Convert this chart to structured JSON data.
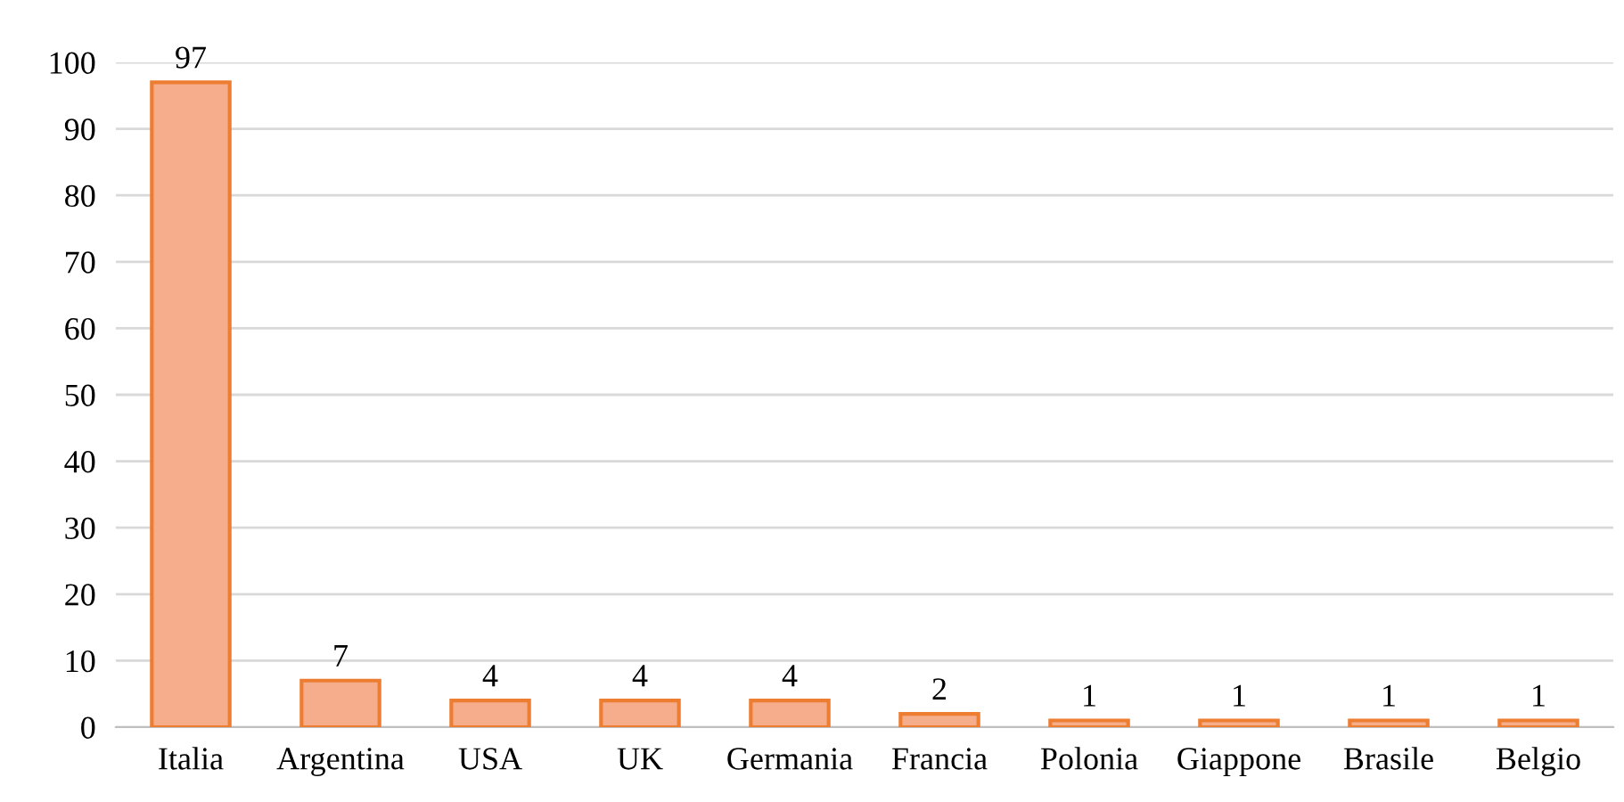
{
  "chart_data": {
    "type": "bar",
    "categories": [
      "Italia",
      "Argentina",
      "USA",
      "UK",
      "Germania",
      "Francia",
      "Polonia",
      "Giappone",
      "Brasile",
      "Belgio"
    ],
    "values": [
      97,
      7,
      4,
      4,
      4,
      2,
      1,
      1,
      1,
      1
    ],
    "color": "#f6ad8c",
    "ylim": [
      0,
      100
    ],
    "yticks": [
      0,
      10,
      20,
      30,
      40,
      50,
      60,
      70,
      80,
      90,
      100
    ],
    "grid": "y",
    "data_labels": true
  }
}
